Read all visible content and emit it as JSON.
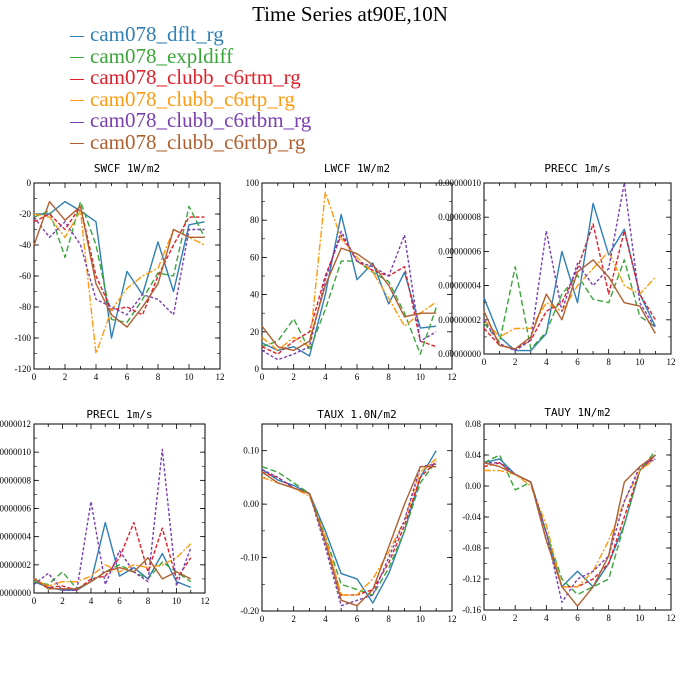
{
  "title": "Time Series at90E,10N",
  "legend": [
    {
      "name": "cam078_dflt_rg",
      "color": "#2f7fb5"
    },
    {
      "name": "cam078_expldiff",
      "color": "#3aa63a"
    },
    {
      "name": "cam078_clubb_c6rtm_rg",
      "color": "#e0202a"
    },
    {
      "name": "cam078_clubb_c6rtp_rg",
      "color": "#ff9a10"
    },
    {
      "name": "cam078_clubb_c6rtbm_rg",
      "color": "#7a3fb0"
    },
    {
      "name": "cam078_clubb_c6rtbp_rg",
      "color": "#b06030"
    }
  ],
  "chart_data": [
    {
      "type": "line",
      "title": "SWCF   1W/m2",
      "x": [
        0,
        1,
        2,
        3,
        4,
        5,
        6,
        7,
        8,
        9,
        10,
        11
      ],
      "xlim": [
        0,
        12
      ],
      "ylim": [
        -120,
        0
      ],
      "xticks": [
        0,
        2,
        4,
        6,
        8,
        10,
        12
      ],
      "yticks": [
        0,
        -20,
        -40,
        -60,
        -80,
        -100,
        -120
      ],
      "ytick_labels": [
        "0",
        "-20",
        "-40",
        "-60",
        "-80",
        "-100",
        "-120"
      ],
      "series": [
        {
          "values": [
            -20,
            -20,
            -12,
            -18,
            -25,
            -100,
            -57,
            -72,
            -38,
            -70,
            -27,
            -25
          ]
        },
        {
          "values": [
            -22,
            -18,
            -48,
            -12,
            -40,
            -88,
            -90,
            -75,
            -58,
            -60,
            -15,
            -35
          ]
        },
        {
          "values": [
            -25,
            -20,
            -30,
            -15,
            -60,
            -82,
            -80,
            -85,
            -60,
            -40,
            -22,
            -22
          ]
        },
        {
          "values": [
            -20,
            -22,
            -35,
            -18,
            -110,
            -82,
            -68,
            -60,
            -55,
            -30,
            -35,
            -40
          ]
        },
        {
          "values": [
            -22,
            -35,
            -25,
            -40,
            -75,
            -80,
            -85,
            -72,
            -75,
            -85,
            -30,
            -30
          ]
        },
        {
          "values": [
            -40,
            -12,
            -24,
            -15,
            -65,
            -85,
            -93,
            -80,
            -65,
            -30,
            -35,
            -35
          ]
        }
      ]
    },
    {
      "type": "line",
      "title": "LWCF   1W/m2",
      "x": [
        0,
        1,
        2,
        3,
        4,
        5,
        6,
        7,
        8,
        9,
        10,
        11
      ],
      "xlim": [
        0,
        12
      ],
      "ylim": [
        0,
        100
      ],
      "xticks": [
        0,
        2,
        4,
        6,
        8,
        10,
        12
      ],
      "yticks": [
        0,
        20,
        40,
        60,
        80,
        100
      ],
      "ytick_labels": [
        "0",
        "20",
        "40",
        "60",
        "80",
        "100"
      ],
      "series": [
        {
          "values": [
            14,
            10,
            12,
            7,
            40,
            83,
            48,
            57,
            35,
            52,
            22,
            23
          ]
        },
        {
          "values": [
            12,
            15,
            27,
            10,
            32,
            58,
            58,
            52,
            47,
            30,
            8,
            33
          ]
        },
        {
          "values": [
            12,
            8,
            15,
            20,
            50,
            72,
            58,
            53,
            50,
            55,
            15,
            12
          ]
        },
        {
          "values": [
            17,
            10,
            17,
            12,
            95,
            70,
            60,
            52,
            38,
            23,
            30,
            36
          ]
        },
        {
          "values": [
            10,
            5,
            8,
            12,
            48,
            74,
            58,
            55,
            50,
            72,
            15,
            20
          ]
        },
        {
          "values": [
            23,
            12,
            10,
            15,
            45,
            65,
            62,
            56,
            45,
            28,
            30,
            30
          ]
        }
      ]
    },
    {
      "type": "line",
      "title": "PRECC   1m/s",
      "x": [
        0,
        1,
        2,
        3,
        4,
        5,
        6,
        7,
        8,
        9,
        10,
        11
      ],
      "xlim": [
        0,
        12
      ],
      "ylim": [
        0,
        1e-07
      ],
      "xticks": [
        0,
        2,
        4,
        6,
        8,
        10,
        12
      ],
      "yticks": [
        0,
        2e-08,
        4e-08,
        6e-08,
        8e-08,
        1e-07
      ],
      "ytick_labels": [
        "0.00000000",
        "0.00000002",
        "0.00000004",
        "0.00000006",
        "0.00000008",
        "0.00000010"
      ],
      "series": [
        {
          "values": [
            3.3e-08,
            1e-08,
            2e-09,
            2e-09,
            1.2e-08,
            6e-08,
            3e-08,
            8.8e-08,
            5.8e-08,
            7.3e-08,
            3.5e-08,
            1.6e-08
          ]
        },
        {
          "values": [
            1.8e-08,
            7e-09,
            5.1e-08,
            3e-09,
            1.3e-08,
            3.5e-08,
            4.6e-08,
            3.2e-08,
            3e-08,
            5.5e-08,
            2.2e-08,
            1.6e-08
          ]
        },
        {
          "values": [
            1.5e-08,
            5e-09,
            3e-09,
            8e-09,
            2.5e-08,
            3e-08,
            5e-08,
            7.6e-08,
            3.5e-08,
            7.2e-08,
            3.5e-08,
            2e-08
          ]
        },
        {
          "values": [
            2e-08,
            1e-08,
            1.5e-08,
            1.5e-08,
            3e-08,
            2.5e-08,
            4e-08,
            5e-08,
            6e-08,
            4e-08,
            3.5e-08,
            4.5e-08
          ]
        },
        {
          "values": [
            2e-08,
            6e-09,
            2e-09,
            8e-09,
            7.2e-08,
            2.5e-08,
            5.3e-08,
            4e-08,
            5e-08,
            1e-07,
            3e-08,
            1.5e-08
          ]
        },
        {
          "values": [
            2.5e-08,
            5e-09,
            3e-09,
            1e-08,
            3.5e-08,
            2e-08,
            4.8e-08,
            5.5e-08,
            4.5e-08,
            3e-08,
            2.8e-08,
            1.2e-08
          ]
        }
      ]
    },
    {
      "type": "line",
      "title": "PRECL   1m/s",
      "x": [
        0,
        1,
        2,
        3,
        4,
        5,
        6,
        7,
        8,
        9,
        10,
        11
      ],
      "xlim": [
        0,
        12
      ],
      "ylim": [
        0,
        1.2e-07
      ],
      "xticks": [
        0,
        2,
        4,
        6,
        8,
        10,
        12
      ],
      "yticks": [
        0,
        2e-08,
        4e-08,
        6e-08,
        8e-08,
        1e-07,
        1.2e-07
      ],
      "ytick_labels": [
        "0.00000000",
        "0.00000002",
        "0.00000004",
        "0.00000006",
        "0.00000008",
        "0.00000010",
        "0.00000012"
      ],
      "series": [
        {
          "values": [
            8e-09,
            4e-09,
            2e-09,
            2e-09,
            8e-09,
            5e-08,
            1.2e-08,
            1.8e-08,
            1e-08,
            2.8e-08,
            8e-09,
            4e-09
          ]
        },
        {
          "values": [
            8e-09,
            6e-09,
            1.5e-08,
            3e-09,
            8e-09,
            1.5e-08,
            2e-08,
            1.5e-08,
            1e-08,
            2.2e-08,
            1.5e-08,
            8e-09
          ]
        },
        {
          "values": [
            1e-08,
            4e-09,
            5e-09,
            2e-09,
            1e-08,
            1.2e-08,
            2.5e-08,
            5e-08,
            1.5e-08,
            4.6e-08,
            1e-08,
            2.5e-08
          ]
        },
        {
          "values": [
            1e-08,
            5e-09,
            8e-09,
            8e-09,
            1.2e-08,
            2e-08,
            1.5e-08,
            2e-08,
            1.8e-08,
            2e-08,
            2.5e-08,
            3.5e-08
          ]
        },
        {
          "values": [
            6e-09,
            1.4e-08,
            2e-09,
            2e-09,
            6.5e-08,
            6e-09,
            3e-08,
            1.5e-08,
            8e-09,
            1.02e-07,
            5e-09,
            3.2e-08
          ]
        },
        {
          "values": [
            1e-08,
            3e-09,
            3e-09,
            3e-09,
            8e-09,
            1.5e-08,
            1.8e-08,
            1.5e-08,
            2.5e-08,
            1e-08,
            1.5e-08,
            1e-08
          ]
        }
      ]
    },
    {
      "type": "line",
      "title": "TAUX   1.0N/m2",
      "x": [
        0,
        1,
        2,
        3,
        4,
        5,
        6,
        7,
        8,
        9,
        10,
        11
      ],
      "xlim": [
        0,
        12
      ],
      "ylim": [
        -0.2,
        0.15
      ],
      "xticks": [
        0,
        2,
        4,
        6,
        8,
        10,
        12
      ],
      "yticks": [
        0.1,
        0,
        -0.1,
        -0.2
      ],
      "ytick_labels": [
        "0.10",
        "0.00",
        "-0.10",
        "-0.20"
      ],
      "series": [
        {
          "values": [
            0.065,
            0.045,
            0.035,
            0.02,
            -0.05,
            -0.13,
            -0.14,
            -0.185,
            -0.13,
            -0.05,
            0.05,
            0.1
          ]
        },
        {
          "values": [
            0.07,
            0.06,
            0.04,
            0.02,
            -0.06,
            -0.15,
            -0.16,
            -0.17,
            -0.12,
            -0.05,
            0.04,
            0.08
          ]
        },
        {
          "values": [
            0.06,
            0.05,
            0.03,
            0.02,
            -0.07,
            -0.17,
            -0.17,
            -0.16,
            -0.11,
            -0.04,
            0.05,
            0.08
          ]
        },
        {
          "values": [
            0.05,
            0.04,
            0.03,
            0.015,
            -0.06,
            -0.17,
            -0.17,
            -0.14,
            -0.09,
            -0.03,
            0.06,
            0.085
          ]
        },
        {
          "values": [
            0.065,
            0.05,
            0.03,
            0.02,
            -0.08,
            -0.19,
            -0.18,
            -0.17,
            -0.1,
            -0.03,
            0.07,
            0.075
          ]
        },
        {
          "values": [
            0.06,
            0.04,
            0.03,
            0.02,
            -0.07,
            -0.18,
            -0.19,
            -0.16,
            -0.08,
            0,
            0.07,
            0.07
          ]
        }
      ]
    },
    {
      "type": "line",
      "title": "TAUY   1N/m2",
      "x": [
        0,
        1,
        2,
        3,
        4,
        5,
        6,
        7,
        8,
        9,
        10,
        11
      ],
      "xlim": [
        0,
        12
      ],
      "ylim": [
        -0.16,
        0.08
      ],
      "xticks": [
        0,
        2,
        4,
        6,
        8,
        10,
        12
      ],
      "yticks": [
        0.08,
        0.04,
        0,
        -0.04,
        -0.08,
        -0.12,
        -0.16
      ],
      "ytick_labels": [
        "0.08",
        "0.04",
        "0.00",
        "-0.04",
        "-0.08",
        "-0.12",
        "-0.16"
      ],
      "series": [
        {
          "values": [
            0.03,
            0.035,
            0.015,
            0.005,
            -0.06,
            -0.13,
            -0.11,
            -0.13,
            -0.1,
            -0.05,
            0.02,
            0.04
          ]
        },
        {
          "values": [
            0.03,
            0.04,
            -0.005,
            0.005,
            -0.06,
            -0.12,
            -0.14,
            -0.13,
            -0.12,
            -0.05,
            0.02,
            0.045
          ]
        },
        {
          "values": [
            0.025,
            0.03,
            0.015,
            0.005,
            -0.07,
            -0.13,
            -0.13,
            -0.12,
            -0.1,
            -0.04,
            0.02,
            0.04
          ]
        },
        {
          "values": [
            0.02,
            0.02,
            0.015,
            0,
            -0.05,
            -0.13,
            -0.13,
            -0.11,
            -0.07,
            -0.02,
            0.02,
            0.035
          ]
        },
        {
          "values": [
            0.03,
            0.03,
            0.015,
            0.005,
            -0.06,
            -0.15,
            -0.12,
            -0.11,
            -0.09,
            -0.02,
            0.025,
            0.035
          ]
        },
        {
          "values": [
            0.03,
            0.025,
            0.015,
            0.005,
            -0.07,
            -0.13,
            -0.155,
            -0.13,
            -0.09,
            0.005,
            0.025,
            0.04
          ]
        }
      ]
    }
  ]
}
